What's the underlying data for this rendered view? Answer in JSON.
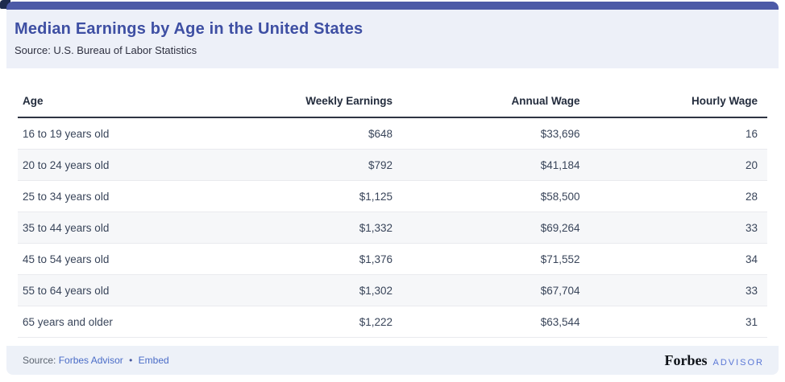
{
  "header": {
    "title": "Median Earnings by Age in the United States",
    "subtitle": "Source: U.S. Bureau of Labor Statistics"
  },
  "table": {
    "columns": [
      "Age",
      "Weekly Earnings",
      "Annual Wage",
      "Hourly Wage"
    ],
    "rows": [
      [
        "16 to 19 years old",
        "$648",
        "$33,696",
        "16"
      ],
      [
        "20 to 24 years old",
        "$792",
        "$41,184",
        "20"
      ],
      [
        "25 to 34 years old",
        "$1,125",
        "$58,500",
        "28"
      ],
      [
        "35 to 44 years old",
        "$1,332",
        "$69,264",
        "33"
      ],
      [
        "45 to 54 years old",
        "$1,376",
        "$71,552",
        "34"
      ],
      [
        "55 to 64 years old",
        "$1,302",
        "$67,704",
        "33"
      ],
      [
        "65 years and older",
        "$1,222",
        "$63,544",
        "31"
      ]
    ]
  },
  "footer": {
    "source_label": "Source:",
    "source_link": "Forbes Advisor",
    "separator": "•",
    "embed_link": "Embed",
    "brand_name": "Forbes",
    "brand_suffix": "ADVISOR"
  },
  "colors": {
    "accent_bar": "#4c5aa7",
    "corner_fragment": "#1d2b4e",
    "header_footer_bg": "#edf0f8",
    "title": "#3e4fa3",
    "link": "#4a6cc7",
    "row_stripe": "#f6f7f9",
    "header_rule": "#2e3442",
    "brand_suffix": "#5b78d6"
  },
  "chart_data": {
    "type": "table",
    "title": "Median Earnings by Age in the United States",
    "source": "U.S. Bureau of Labor Statistics",
    "categories": [
      "16 to 19 years old",
      "20 to 24 years old",
      "25 to 34 years old",
      "35 to 44 years old",
      "45 to 54 years old",
      "55 to 64 years old",
      "65 years and older"
    ],
    "series": [
      {
        "name": "Weekly Earnings",
        "values": [
          648,
          792,
          1125,
          1332,
          1376,
          1302,
          1222
        ]
      },
      {
        "name": "Annual Wage",
        "values": [
          33696,
          41184,
          58500,
          69264,
          71552,
          67704,
          63544
        ]
      },
      {
        "name": "Hourly Wage",
        "values": [
          16,
          20,
          28,
          33,
          34,
          33,
          31
        ]
      }
    ]
  }
}
